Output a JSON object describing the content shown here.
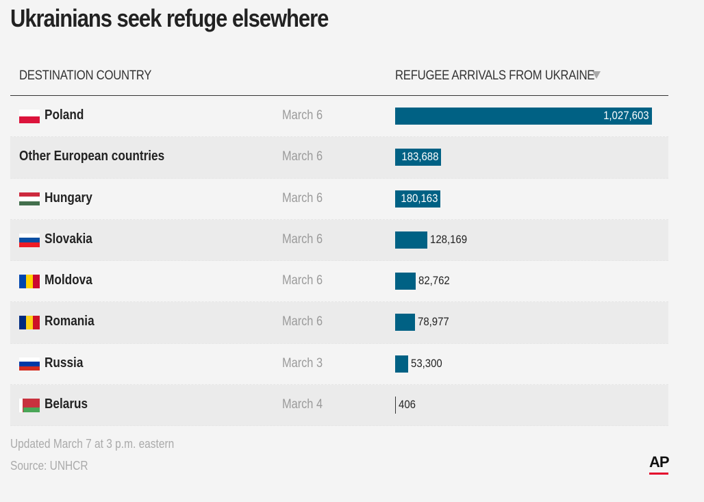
{
  "title": "Ukrainians seek refuge elsewhere",
  "headers": {
    "country": "DESTINATION COUNTRY",
    "values": "REFUGEE ARRIVALS FROM UKRAINE",
    "sort_icon": "sort-descending-arrow-icon"
  },
  "colors": {
    "bar": "#006184",
    "background": "#f4f4f4",
    "logo_red": "#e4002b"
  },
  "chart_data": {
    "type": "bar",
    "orientation": "horizontal",
    "title": "Ukrainians seek refuge elsewhere",
    "xlabel": "REFUGEE ARRIVALS FROM UKRAINE",
    "ylabel": "DESTINATION COUNTRY",
    "categories": [
      "Poland",
      "Other European countries",
      "Hungary",
      "Slovakia",
      "Moldova",
      "Romania",
      "Russia",
      "Belarus"
    ],
    "values": [
      1027603,
      183688,
      180163,
      128169,
      82762,
      78977,
      53300,
      406
    ],
    "max": 1027603,
    "rows": [
      {
        "country": "Poland",
        "flag": "poland-flag-icon",
        "date": "March 6",
        "value": 1027603,
        "label": "1,027,603"
      },
      {
        "country": "Other European countries",
        "flag": "",
        "date": "March 6",
        "value": 183688,
        "label": "183,688"
      },
      {
        "country": "Hungary",
        "flag": "hungary-flag-icon",
        "date": "March 6",
        "value": 180163,
        "label": "180,163"
      },
      {
        "country": "Slovakia",
        "flag": "slovakia-flag-icon",
        "date": "March 6",
        "value": 128169,
        "label": "128,169"
      },
      {
        "country": "Moldova",
        "flag": "moldova-flag-icon",
        "date": "March 6",
        "value": 82762,
        "label": "82,762"
      },
      {
        "country": "Romania",
        "flag": "romania-flag-icon",
        "date": "March 6",
        "value": 78977,
        "label": "78,977"
      },
      {
        "country": "Russia",
        "flag": "russia-flag-icon",
        "date": "March 3",
        "value": 53300,
        "label": "53,300"
      },
      {
        "country": "Belarus",
        "flag": "belarus-flag-icon",
        "date": "March 4",
        "value": 406,
        "label": "406"
      }
    ]
  },
  "footer": {
    "updated": "Updated March 7 at 3 p.m. eastern",
    "source": "Source: UNHCR"
  },
  "logo": {
    "text": "AP"
  }
}
